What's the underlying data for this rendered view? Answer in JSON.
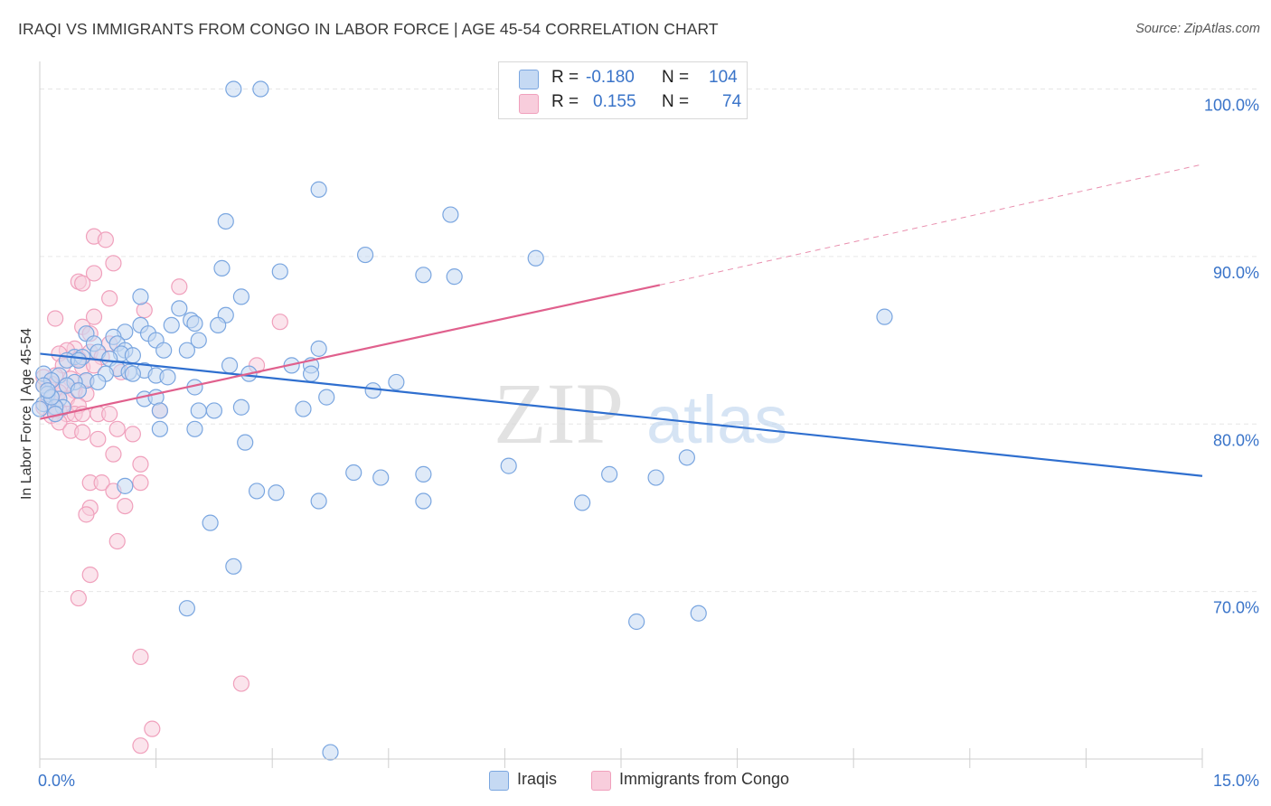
{
  "chart_data": {
    "type": "scatter",
    "title": "IRAQI VS IMMIGRANTS FROM CONGO IN LABOR FORCE | AGE 45-54 CORRELATION CHART",
    "source": "Source: ZipAtlas.com",
    "xlabel": "",
    "ylabel": "In Labor Force | Age 45-54",
    "xlim": [
      0,
      15
    ],
    "ylim": [
      60,
      101
    ],
    "x_tick_labels": [
      "0.0%",
      "15.0%"
    ],
    "y_ticks": [
      70,
      80,
      90,
      100
    ],
    "y_tick_labels": [
      "70.0%",
      "80.0%",
      "90.0%",
      "100.0%"
    ],
    "watermark": "ZIPatlas",
    "legend": {
      "rows": [
        {
          "r_label": "R =",
          "r_value": "-0.180",
          "n_label": "N =",
          "n_value": "104"
        },
        {
          "r_label": "R =",
          "r_value": "0.155",
          "n_label": "N =",
          "n_value": "74"
        }
      ]
    },
    "series": [
      {
        "name": "Iraqis",
        "color": "#7aa6e0",
        "line_color": "#2f6fcf",
        "trend": {
          "x": [
            0.0,
            15.0
          ],
          "y": [
            84.2,
            76.9
          ]
        },
        "points": [
          [
            2.5,
            100.0
          ],
          [
            2.85,
            100.0
          ],
          [
            3.6,
            94.0
          ],
          [
            5.3,
            92.5
          ],
          [
            2.4,
            92.1
          ],
          [
            4.2,
            90.1
          ],
          [
            6.4,
            89.9
          ],
          [
            2.35,
            89.3
          ],
          [
            3.1,
            89.1
          ],
          [
            4.95,
            88.9
          ],
          [
            5.35,
            88.8
          ],
          [
            1.3,
            87.6
          ],
          [
            2.6,
            87.6
          ],
          [
            1.8,
            86.9
          ],
          [
            2.4,
            86.5
          ],
          [
            1.95,
            86.2
          ],
          [
            10.9,
            86.4
          ],
          [
            1.3,
            85.9
          ],
          [
            1.7,
            85.9
          ],
          [
            2.3,
            85.9
          ],
          [
            2.0,
            86.0
          ],
          [
            1.1,
            85.5
          ],
          [
            0.6,
            85.4
          ],
          [
            0.95,
            85.2
          ],
          [
            1.4,
            85.4
          ],
          [
            1.5,
            85.0
          ],
          [
            2.05,
            85.0
          ],
          [
            0.7,
            84.8
          ],
          [
            1.0,
            84.8
          ],
          [
            1.9,
            84.4
          ],
          [
            1.6,
            84.4
          ],
          [
            3.6,
            84.5
          ],
          [
            1.1,
            84.4
          ],
          [
            1.05,
            84.2
          ],
          [
            0.75,
            84.3
          ],
          [
            0.45,
            84.0
          ],
          [
            0.55,
            84.0
          ],
          [
            0.9,
            83.9
          ],
          [
            1.2,
            84.1
          ],
          [
            0.35,
            83.8
          ],
          [
            0.5,
            83.8
          ],
          [
            2.45,
            83.5
          ],
          [
            3.25,
            83.5
          ],
          [
            3.5,
            83.5
          ],
          [
            1.35,
            83.2
          ],
          [
            1.0,
            83.3
          ],
          [
            1.15,
            83.1
          ],
          [
            0.85,
            83.0
          ],
          [
            3.5,
            83.0
          ],
          [
            2.7,
            83.0
          ],
          [
            1.2,
            83.0
          ],
          [
            1.5,
            82.9
          ],
          [
            0.6,
            82.6
          ],
          [
            0.45,
            82.5
          ],
          [
            0.75,
            82.5
          ],
          [
            1.65,
            82.8
          ],
          [
            0.25,
            82.9
          ],
          [
            0.05,
            83.0
          ],
          [
            0.15,
            82.6
          ],
          [
            0.35,
            82.3
          ],
          [
            0.05,
            82.3
          ],
          [
            0.5,
            82.0
          ],
          [
            2.0,
            82.2
          ],
          [
            4.6,
            82.5
          ],
          [
            4.3,
            82.0
          ],
          [
            0.1,
            81.8
          ],
          [
            0.25,
            81.5
          ],
          [
            0.05,
            81.2
          ],
          [
            0.3,
            81.0
          ],
          [
            0.2,
            81.0
          ],
          [
            0.15,
            81.6
          ],
          [
            1.35,
            81.5
          ],
          [
            3.7,
            81.6
          ],
          [
            1.5,
            81.6
          ],
          [
            2.6,
            81.0
          ],
          [
            3.4,
            80.9
          ],
          [
            2.25,
            80.8
          ],
          [
            2.05,
            80.8
          ],
          [
            1.55,
            80.8
          ],
          [
            0.2,
            80.6
          ],
          [
            1.55,
            79.7
          ],
          [
            2.0,
            79.7
          ],
          [
            2.65,
            78.9
          ],
          [
            8.35,
            78.0
          ],
          [
            6.05,
            77.5
          ],
          [
            4.05,
            77.1
          ],
          [
            7.35,
            77.0
          ],
          [
            4.95,
            77.0
          ],
          [
            4.4,
            76.8
          ],
          [
            7.95,
            76.8
          ],
          [
            1.1,
            76.3
          ],
          [
            2.8,
            76.0
          ],
          [
            3.05,
            75.9
          ],
          [
            3.6,
            75.4
          ],
          [
            4.95,
            75.4
          ],
          [
            7.0,
            75.3
          ],
          [
            2.2,
            74.1
          ],
          [
            2.5,
            71.5
          ],
          [
            1.9,
            69.0
          ],
          [
            8.5,
            68.7
          ],
          [
            7.7,
            68.2
          ],
          [
            3.75,
            60.4
          ],
          [
            0.0,
            80.9
          ],
          [
            0.1,
            82.0
          ]
        ]
      },
      {
        "name": "Immigrants from Congo",
        "color": "#f0a0bc",
        "line_color": "#e0608d",
        "trend": {
          "x": [
            0.0,
            8.0
          ],
          "y": [
            80.3,
            88.3
          ]
        },
        "trend_dashed_to": {
          "x": 15.0,
          "y": 95.5
        },
        "points": [
          [
            0.7,
            91.2
          ],
          [
            0.85,
            91.0
          ],
          [
            0.95,
            89.6
          ],
          [
            0.7,
            89.0
          ],
          [
            0.5,
            88.5
          ],
          [
            0.55,
            88.4
          ],
          [
            1.8,
            88.2
          ],
          [
            0.9,
            87.5
          ],
          [
            1.35,
            86.8
          ],
          [
            0.2,
            86.3
          ],
          [
            0.7,
            86.4
          ],
          [
            3.1,
            86.1
          ],
          [
            0.55,
            85.8
          ],
          [
            0.65,
            85.4
          ],
          [
            0.9,
            84.8
          ],
          [
            0.45,
            84.5
          ],
          [
            0.35,
            84.4
          ],
          [
            0.65,
            84.3
          ],
          [
            0.8,
            84.0
          ],
          [
            0.25,
            84.2
          ],
          [
            0.5,
            83.9
          ],
          [
            0.3,
            83.5
          ],
          [
            0.55,
            83.4
          ],
          [
            2.8,
            83.5
          ],
          [
            0.7,
            83.5
          ],
          [
            1.05,
            83.1
          ],
          [
            0.2,
            82.9
          ],
          [
            0.4,
            82.7
          ],
          [
            0.6,
            82.6
          ],
          [
            0.15,
            82.4
          ],
          [
            0.3,
            82.2
          ],
          [
            0.05,
            82.3
          ],
          [
            0.45,
            82.0
          ],
          [
            0.25,
            81.9
          ],
          [
            0.6,
            81.8
          ],
          [
            0.1,
            81.6
          ],
          [
            0.35,
            81.5
          ],
          [
            0.15,
            81.3
          ],
          [
            0.05,
            81.0
          ],
          [
            0.2,
            81.0
          ],
          [
            0.5,
            81.1
          ],
          [
            0.25,
            80.8
          ],
          [
            0.35,
            80.6
          ],
          [
            0.45,
            80.6
          ],
          [
            0.55,
            80.6
          ],
          [
            0.75,
            80.6
          ],
          [
            0.9,
            80.6
          ],
          [
            1.55,
            80.8
          ],
          [
            0.15,
            80.5
          ],
          [
            0.25,
            80.1
          ],
          [
            0.4,
            79.6
          ],
          [
            0.55,
            79.5
          ],
          [
            1.0,
            79.7
          ],
          [
            1.2,
            79.4
          ],
          [
            0.75,
            79.1
          ],
          [
            0.95,
            78.2
          ],
          [
            1.3,
            77.6
          ],
          [
            0.65,
            76.5
          ],
          [
            0.8,
            76.5
          ],
          [
            1.3,
            76.5
          ],
          [
            0.95,
            76.0
          ],
          [
            0.65,
            75.0
          ],
          [
            1.1,
            75.1
          ],
          [
            0.6,
            74.6
          ],
          [
            1.0,
            73.0
          ],
          [
            0.65,
            71.0
          ],
          [
            0.5,
            69.6
          ],
          [
            1.3,
            66.1
          ],
          [
            2.6,
            64.5
          ],
          [
            1.45,
            61.8
          ],
          [
            1.3,
            60.8
          ],
          [
            0.05,
            82.8
          ],
          [
            0.1,
            82.0
          ],
          [
            0.2,
            80.9
          ]
        ]
      }
    ]
  }
}
